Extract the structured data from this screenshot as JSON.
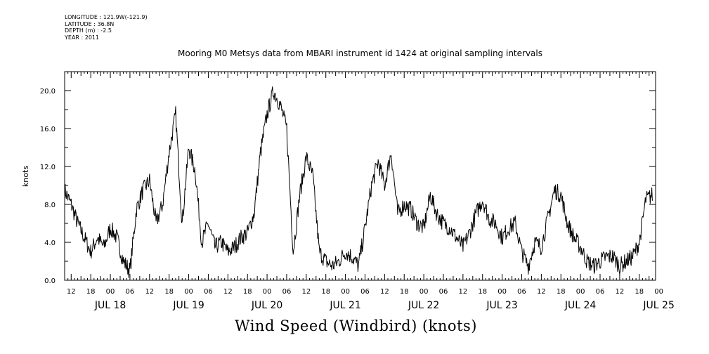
{
  "metadata": {
    "longitude": "LONGITUDE : 121.9W(-121.9)",
    "latitude": "LATITUDE : 36.8N",
    "depth": "DEPTH (m) : -2.5",
    "year": "YEAR : 2011"
  },
  "chart_data": {
    "type": "line",
    "title": "Mooring M0 Metsys data from MBARI instrument id 1424 at original sampling intervals",
    "bottom_title": "Wind Speed (Windbird) (knots)",
    "ylabel": "knots",
    "xlabel": "",
    "ylim": [
      0,
      22
    ],
    "xlim": [
      "2011-07-17T10:00",
      "2011-07-24T23:00"
    ],
    "y_ticks": [
      "0.0",
      "4.0",
      "8.0",
      "12.0",
      "16.0",
      "20.0"
    ],
    "x_hour_ticks": [
      "12",
      "18",
      "00",
      "06",
      "12",
      "18",
      "00",
      "06",
      "12",
      "18",
      "00",
      "06",
      "12",
      "18",
      "00",
      "06",
      "12",
      "18",
      "00",
      "06",
      "12",
      "18",
      "00",
      "06",
      "12",
      "18",
      "00",
      "06",
      "12",
      "18",
      "00"
    ],
    "x_day_labels": [
      "JUL 18",
      "JUL 19",
      "JUL 20",
      "JUL 21",
      "JUL 22",
      "JUL 23",
      "JUL 24",
      "JUL 25"
    ],
    "grid": false,
    "line_color": "#000000",
    "series": [
      {
        "x_hours": [
          0,
          2,
          4,
          6,
          8,
          10,
          12,
          14,
          16,
          18,
          20,
          22,
          24,
          26,
          28,
          30,
          32,
          34,
          36,
          38,
          40,
          42,
          44,
          46,
          48,
          50,
          52,
          54,
          56,
          58,
          60,
          62,
          64,
          66,
          68,
          70,
          72,
          74,
          76,
          78,
          80,
          82,
          84,
          86,
          88,
          90,
          92,
          94,
          96,
          98,
          100,
          102,
          104,
          106,
          108,
          110,
          112,
          114,
          116,
          118,
          120,
          122,
          124,
          126,
          128,
          130,
          132,
          134,
          136,
          138,
          140,
          142,
          144,
          146,
          148,
          150,
          152,
          154,
          156,
          158,
          160,
          162,
          164,
          166,
          168,
          170,
          172,
          174,
          176,
          178,
          180
        ],
        "values": [
          9.5,
          8.0,
          6.0,
          4.5,
          3.0,
          4.5,
          3.5,
          5.5,
          4.5,
          2.0,
          1.0,
          7.5,
          9.5,
          10.5,
          6.0,
          8.0,
          13.5,
          17.5,
          6.0,
          14.0,
          11.5,
          4.0,
          6.0,
          3.5,
          4.0,
          3.0,
          3.5,
          4.5,
          5.0,
          7.0,
          13.5,
          17.5,
          20.0,
          18.5,
          16.0,
          3.0,
          9.0,
          13.0,
          11.0,
          3.0,
          2.0,
          1.5,
          2.0,
          3.0,
          2.5,
          1.5,
          5.5,
          10.0,
          12.5,
          10.0,
          13.5,
          7.0,
          8.0,
          7.5,
          6.0,
          5.5,
          9.0,
          7.0,
          6.0,
          5.5,
          4.5,
          3.5,
          5.0,
          7.0,
          8.5,
          6.5,
          6.0,
          4.5,
          5.5,
          6.0,
          3.0,
          1.5,
          4.0,
          3.5,
          6.5,
          9.5,
          9.0,
          6.0,
          4.5,
          3.5,
          2.0,
          1.5,
          2.0,
          2.5,
          2.5,
          1.5,
          2.0,
          2.5,
          4.0,
          8.5,
          9.0
        ]
      }
    ]
  }
}
